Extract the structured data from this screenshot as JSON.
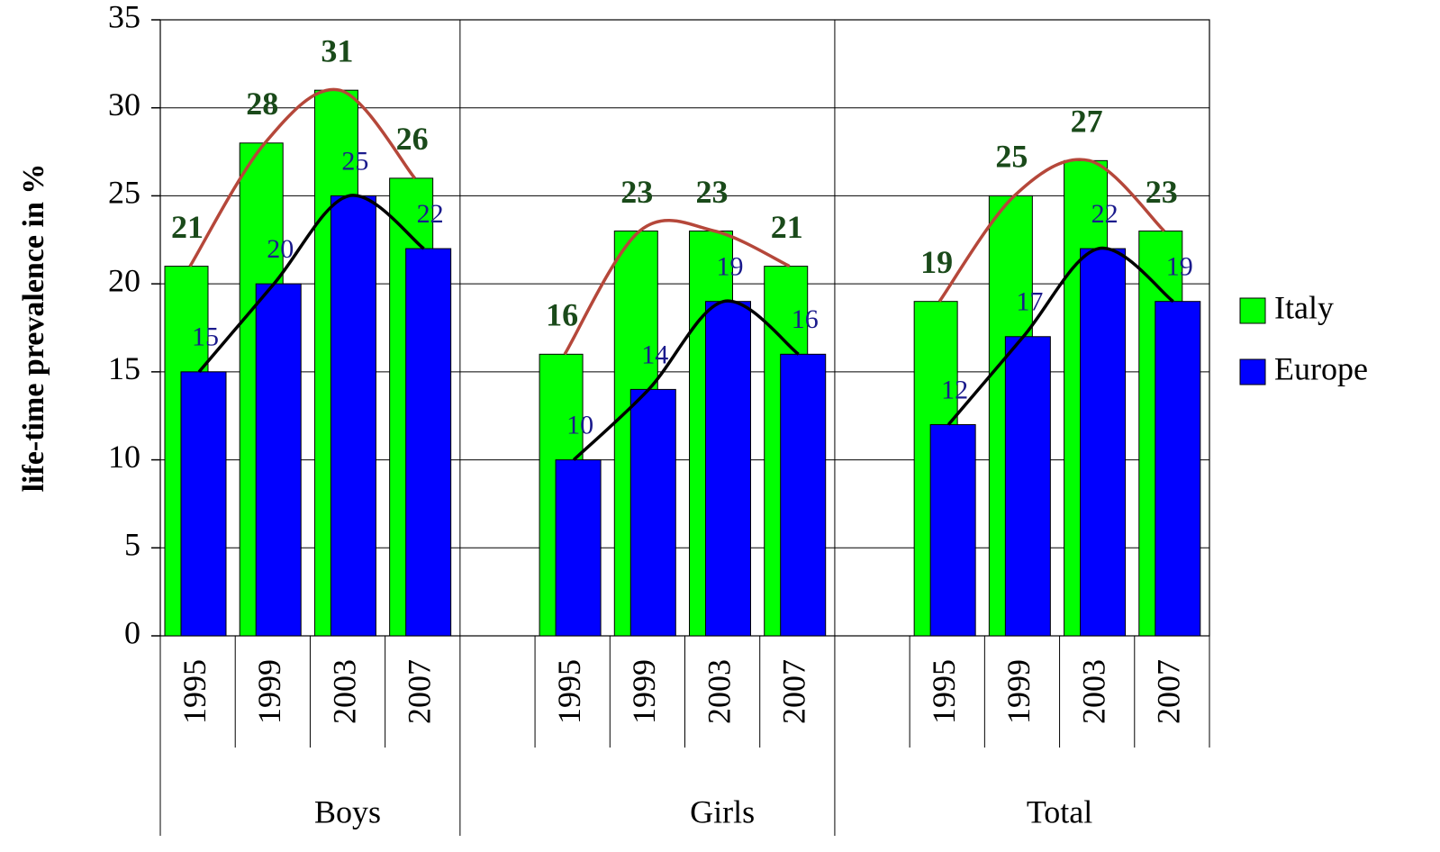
{
  "chart_data": {
    "type": "bar",
    "y_label": "life-time prevalence in %",
    "categories": [
      "1995",
      "1999",
      "2003",
      "2007",
      null,
      "1995",
      "1999",
      "2003",
      "2007",
      null,
      "1995",
      "1999",
      "2003",
      "2007"
    ],
    "groups": [
      "Boys",
      "Girls",
      "Total"
    ],
    "series": [
      {
        "name": "Italy",
        "color": "#00ff00",
        "line_color": "#b5473a",
        "label_color": "#1a4a1a",
        "values": [
          21,
          28,
          31,
          26,
          null,
          16,
          23,
          23,
          21,
          null,
          19,
          25,
          27,
          23
        ]
      },
      {
        "name": "Europe",
        "color": "#0000ff",
        "line_color": "#000000",
        "label_color": "#1a1a8c",
        "values": [
          15,
          20,
          25,
          22,
          null,
          10,
          14,
          19,
          16,
          null,
          12,
          17,
          22,
          19
        ]
      }
    ],
    "ylim": [
      0,
      35
    ],
    "yticks": [
      0,
      5,
      10,
      15,
      20,
      25,
      30,
      35
    ],
    "grid": true,
    "trend_line": true,
    "legend": "right"
  }
}
